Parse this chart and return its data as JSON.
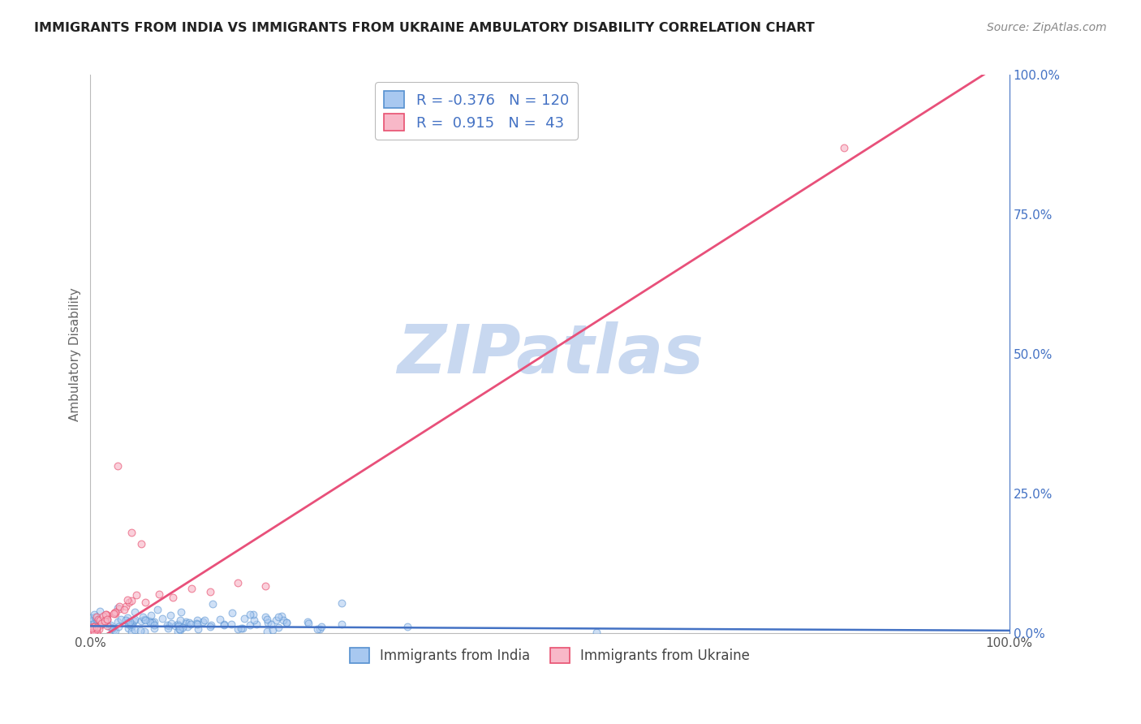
{
  "title": "IMMIGRANTS FROM INDIA VS IMMIGRANTS FROM UKRAINE AMBULATORY DISABILITY CORRELATION CHART",
  "source": "Source: ZipAtlas.com",
  "ylabel": "Ambulatory Disability",
  "watermark": "ZIPatlas",
  "legend_india_R": "-0.376",
  "legend_india_N": "120",
  "legend_ukraine_R": "0.915",
  "legend_ukraine_N": "43",
  "india_color": "#a8c8f0",
  "ukraine_color": "#f8b8c8",
  "india_edge_color": "#5590d0",
  "ukraine_edge_color": "#e85070",
  "india_line_color": "#4472c4",
  "ukraine_line_color": "#e8507a",
  "right_yticks": [
    0.0,
    0.25,
    0.5,
    0.75,
    1.0
  ],
  "right_ytick_labels": [
    "0.0%",
    "25.0%",
    "50.0%",
    "75.0%",
    "100.0%"
  ],
  "background_color": "#ffffff",
  "grid_color": "#cccccc",
  "title_color": "#222222",
  "axis_label_color": "#666666",
  "legend_text_color": "#4472c4",
  "source_color": "#888888",
  "watermark_color": "#c8d8f0",
  "xlim": [
    0.0,
    1.0
  ],
  "ylim": [
    0.0,
    1.0
  ],
  "india_slope": -0.008,
  "india_intercept": 0.013,
  "ukraine_slope": 1.05,
  "ukraine_intercept": -0.02
}
